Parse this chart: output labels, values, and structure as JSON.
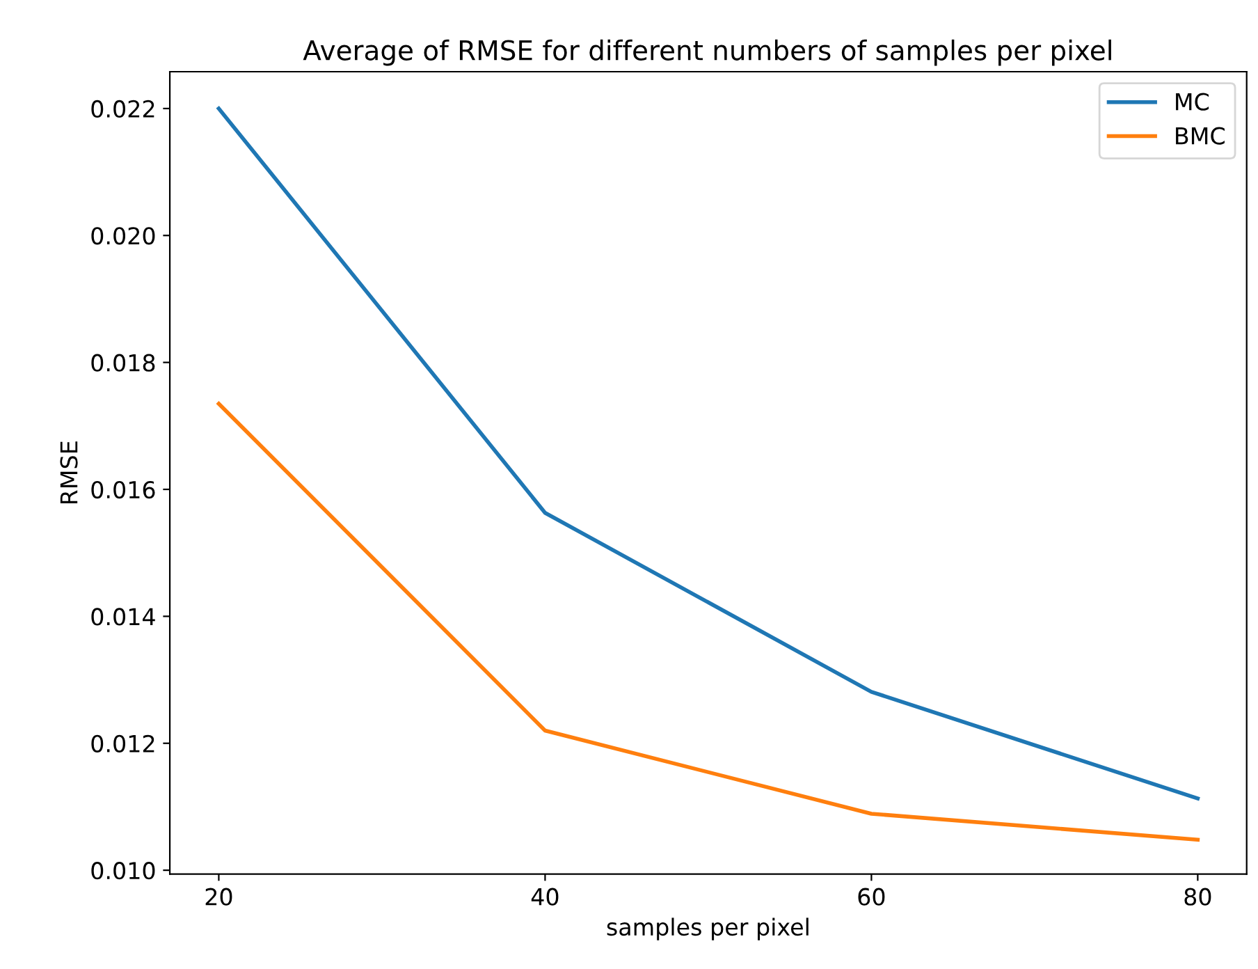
{
  "chart_data": {
    "type": "line",
    "title": "Average of RMSE for different numbers of samples per pixel",
    "xlabel": "samples per pixel",
    "ylabel": "RMSE",
    "x": [
      20,
      40,
      60,
      80
    ],
    "series": [
      {
        "name": "MC",
        "color": "#1f77b4",
        "values": [
          0.022,
          0.01563,
          0.01281,
          0.01113
        ]
      },
      {
        "name": "BMC",
        "color": "#ff7f0e",
        "values": [
          0.01735,
          0.0122,
          0.01089,
          0.01048
        ]
      }
    ],
    "xlim": [
      17,
      83
    ],
    "xticks": [
      20,
      40,
      60,
      80
    ],
    "ylim": [
      0.00994,
      0.02258
    ],
    "yticks": [
      {
        "value": 0.01,
        "label": "0.010"
      },
      {
        "value": 0.012,
        "label": "0.012"
      },
      {
        "value": 0.014,
        "label": "0.014"
      },
      {
        "value": 0.016,
        "label": "0.016"
      },
      {
        "value": 0.018,
        "label": "0.018"
      },
      {
        "value": 0.02,
        "label": "0.020"
      },
      {
        "value": 0.022,
        "label": "0.022"
      }
    ],
    "legend": "top right",
    "grid": false,
    "marker": "none",
    "line_style": "solid"
  }
}
